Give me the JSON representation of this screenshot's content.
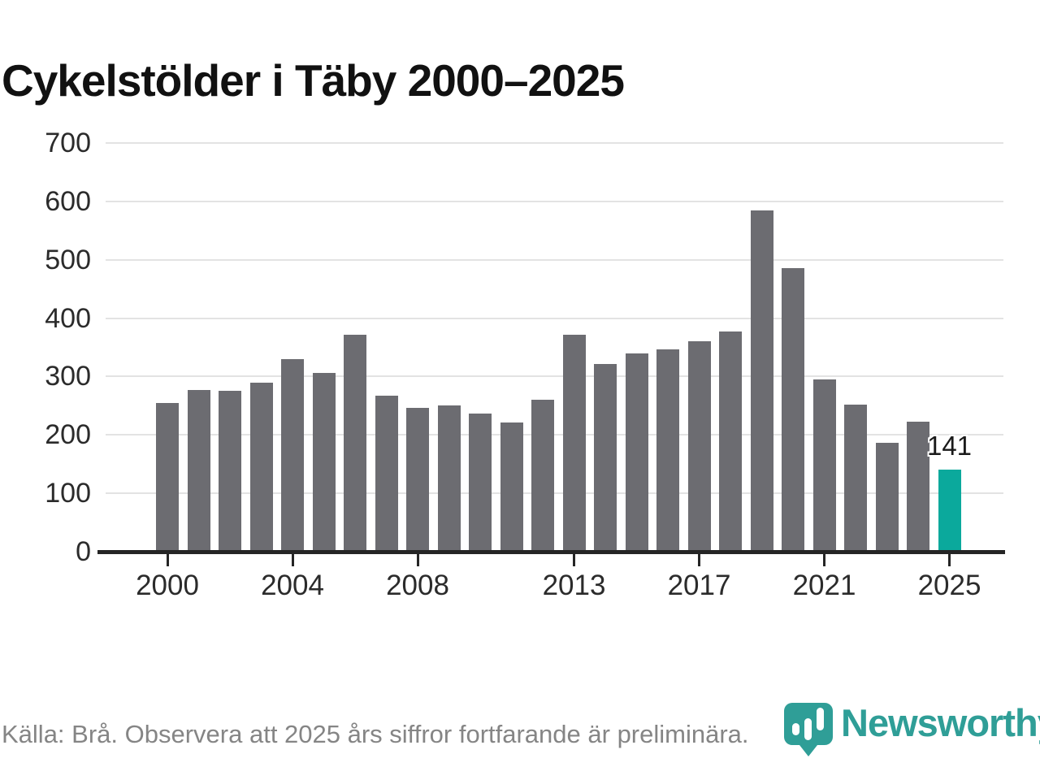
{
  "title": "Cykelstölder i Täby 2000–2025",
  "footer": {
    "source_note": "Källa: Brå. Observera att 2025 års siffror fortfarande är preliminära."
  },
  "branding": {
    "wordmark": "Newsworthy",
    "icon": "newsworthy-pin-barchart-icon",
    "color": "#2f9e97"
  },
  "colors": {
    "bar_default": "#6c6c71",
    "bar_highlight": "#0ba99c",
    "gridline": "#e3e3e3",
    "axis_line": "#252525",
    "axis_text": "#2b2b2b",
    "title_text": "#111111",
    "footer_text": "#858585",
    "value_label_text": "#1a1a1a"
  },
  "chart_data": {
    "type": "bar",
    "title": "Cykelstölder i Täby 2000–2025",
    "xlabel": "",
    "ylabel": "",
    "x": [
      2000,
      2001,
      2002,
      2003,
      2004,
      2005,
      2006,
      2007,
      2008,
      2009,
      2010,
      2011,
      2012,
      2013,
      2014,
      2015,
      2016,
      2017,
      2018,
      2019,
      2020,
      2021,
      2022,
      2023,
      2024,
      2025
    ],
    "values": [
      255,
      277,
      275,
      290,
      330,
      306,
      372,
      267,
      246,
      251,
      236,
      221,
      260,
      371,
      322,
      340,
      346,
      360,
      377,
      585,
      486,
      295,
      252,
      187,
      222,
      141
    ],
    "highlight": {
      "year": 2025,
      "label": "141"
    },
    "ylim": [
      0,
      700
    ],
    "yticks": [
      0,
      100,
      200,
      300,
      400,
      500,
      600,
      700
    ],
    "xticks": [
      2000,
      2004,
      2008,
      2013,
      2017,
      2021,
      2025
    ],
    "grid": true,
    "legend": false
  }
}
